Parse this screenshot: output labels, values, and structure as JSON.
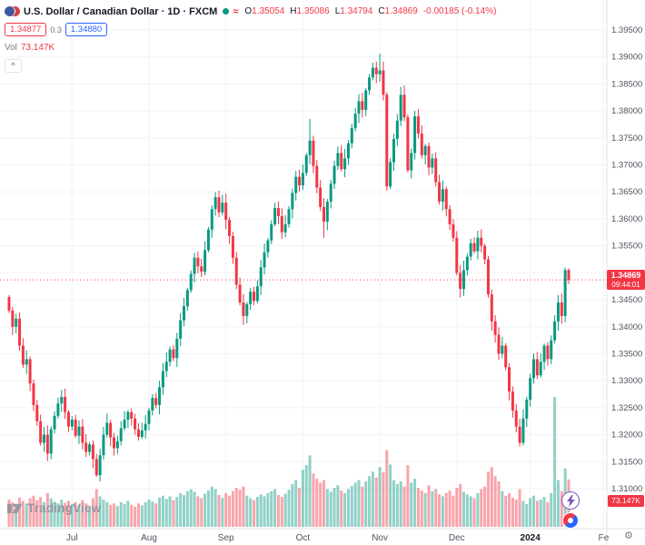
{
  "header": {
    "symbol_title": "U.S. Dollar / Canadian Dollar · 1D · FXCM",
    "ohlc": {
      "o_label": "O",
      "o": "1.35054",
      "h_label": "H",
      "h": "1.35086",
      "l_label": "L",
      "l": "1.34794",
      "c_label": "C",
      "c": "1.34869",
      "change": "-0.00185 (-0.14%)"
    },
    "bid": "1.34877",
    "spread": "0.3",
    "ask": "1.34880",
    "vol_label": "Vol",
    "vol_value": "73.147K",
    "collapse_label": "^"
  },
  "price_scale": {
    "last_price": "1.34869",
    "countdown": "09:44:01",
    "volume_badge": "73.147K"
  },
  "footer": {
    "logo_text": "TradingView"
  },
  "icons": {
    "market_status": "open-dot",
    "approx_data": "≈",
    "lightning": "lightning-bolt",
    "gear": "⚙"
  },
  "chart_data": {
    "type": "candlestick",
    "title": "U.S. Dollar / Canadian Dollar",
    "interval": "1D",
    "exchange": "FXCM",
    "last_price": 1.34869,
    "first_open": 1.3455,
    "closes": [
      1.343,
      1.34,
      1.3415,
      1.3365,
      1.333,
      1.334,
      1.3295,
      1.3255,
      1.3225,
      1.3185,
      1.32,
      1.3165,
      1.321,
      1.3235,
      1.3258,
      1.327,
      1.3242,
      1.3215,
      1.3228,
      1.3198,
      1.3215,
      1.3185,
      1.3168,
      1.3182,
      1.3155,
      1.3125,
      1.3162,
      1.32,
      1.3222,
      1.3195,
      1.3175,
      1.3188,
      1.3212,
      1.3228,
      1.3242,
      1.323,
      1.321,
      1.3196,
      1.3208,
      1.322,
      1.3245,
      1.3268,
      1.3255,
      1.3288,
      1.3318,
      1.3335,
      1.3358,
      1.3342,
      1.3378,
      1.3412,
      1.3438,
      1.3468,
      1.3498,
      1.3528,
      1.3512,
      1.3502,
      1.3542,
      1.358,
      1.3618,
      1.364,
      1.3612,
      1.363,
      1.3598,
      1.3568,
      1.3528,
      1.3478,
      1.3445,
      1.342,
      1.3442,
      1.3465,
      1.3448,
      1.3475,
      1.351,
      1.3538,
      1.356,
      1.359,
      1.362,
      1.3605,
      1.3575,
      1.359,
      1.3618,
      1.3648,
      1.3678,
      1.3662,
      1.3685,
      1.3718,
      1.3745,
      1.3698,
      1.3658,
      1.3622,
      1.3595,
      1.3632,
      1.3665,
      1.3698,
      1.3722,
      1.3692,
      1.3712,
      1.374,
      1.3768,
      1.3795,
      1.3818,
      1.3802,
      1.3838,
      1.3862,
      1.388,
      1.3868,
      1.3875,
      1.383,
      1.366,
      1.3705,
      1.3748,
      1.3782,
      1.383,
      1.3788,
      1.369,
      1.3722,
      1.379,
      1.3758,
      1.3718,
      1.3735,
      1.3695,
      1.3712,
      1.3668,
      1.3632,
      1.3655,
      1.3618,
      1.359,
      1.3565,
      1.35,
      1.347,
      1.3505,
      1.353,
      1.3555,
      1.354,
      1.3565,
      1.355,
      1.3525,
      1.346,
      1.341,
      1.3385,
      1.335,
      1.3365,
      1.3325,
      1.328,
      1.3245,
      1.3215,
      1.3185,
      1.323,
      1.3265,
      1.3305,
      1.334,
      1.331,
      1.3335,
      1.3365,
      1.334,
      1.3375,
      1.341,
      1.3445,
      1.342,
      1.3505,
      1.34869
    ],
    "volumes_k": [
      42,
      38,
      35,
      45,
      40,
      36,
      44,
      48,
      41,
      46,
      38,
      52,
      44,
      39,
      36,
      42,
      37,
      40,
      35,
      38,
      33,
      41,
      36,
      30,
      44,
      58,
      47,
      42,
      38,
      34,
      36,
      32,
      38,
      35,
      40,
      34,
      31,
      36,
      33,
      38,
      42,
      39,
      36,
      45,
      48,
      43,
      47,
      41,
      46,
      52,
      49,
      55,
      58,
      54,
      47,
      44,
      51,
      56,
      62,
      58,
      49,
      45,
      52,
      48,
      55,
      60,
      57,
      62,
      48,
      44,
      41,
      46,
      50,
      47,
      52,
      55,
      58,
      49,
      46,
      51,
      57,
      66,
      72,
      60,
      88,
      95,
      110,
      82,
      74,
      68,
      72,
      58,
      54,
      60,
      64,
      56,
      52,
      58,
      63,
      68,
      72,
      62,
      70,
      78,
      85,
      76,
      92,
      84,
      118,
      96,
      72,
      66,
      70,
      62,
      95,
      68,
      74,
      60,
      56,
      52,
      64,
      55,
      58,
      50,
      47,
      52,
      56,
      48,
      60,
      66,
      54,
      50,
      47,
      44,
      52,
      58,
      62,
      85,
      92,
      78,
      70,
      55,
      48,
      52,
      45,
      42,
      58,
      40,
      35,
      44,
      48,
      40,
      42,
      46,
      38,
      52,
      200,
      72,
      55,
      90,
      73.147
    ],
    "wick_base": 0.0004,
    "wick_span": 0.0014,
    "overrides": {
      "25": {
        "low": 1.3122
      },
      "86": {
        "high": 1.3785
      },
      "90": {
        "low": 1.3565
      },
      "106": {
        "high": 1.3906
      },
      "146": {
        "low": 1.3178
      },
      "160": {
        "open": 1.35054,
        "high": 1.35086,
        "low": 1.34794
      }
    },
    "y_axis": {
      "ticks": [
        "1.39500",
        "1.39000",
        "1.38500",
        "1.38000",
        "1.37500",
        "1.37000",
        "1.36500",
        "1.36000",
        "1.35500",
        "1.35000",
        "1.34500",
        "1.34000",
        "1.33500",
        "1.33000",
        "1.32500",
        "1.32000",
        "1.31500",
        "1.31000"
      ]
    },
    "x_axis": {
      "labels": [
        {
          "text": "Jul",
          "index": 18
        },
        {
          "text": "Aug",
          "index": 40
        },
        {
          "text": "Sep",
          "index": 62
        },
        {
          "text": "Oct",
          "index": 84
        },
        {
          "text": "Nov",
          "index": 106
        },
        {
          "text": "Dec",
          "index": 128
        },
        {
          "text": "2024",
          "index": 149,
          "bold": true
        },
        {
          "text": "Fe",
          "index": 170
        }
      ]
    },
    "colors": {
      "up": "#089981",
      "down": "#f23645",
      "vol_up": "rgba(8,153,129,0.45)",
      "vol_down": "rgba(242,54,69,0.45)",
      "last_line": "#f23645",
      "grid": "#f2f3f7",
      "axis_text": "#50535e",
      "axis_border": "#e0e3eb"
    }
  }
}
